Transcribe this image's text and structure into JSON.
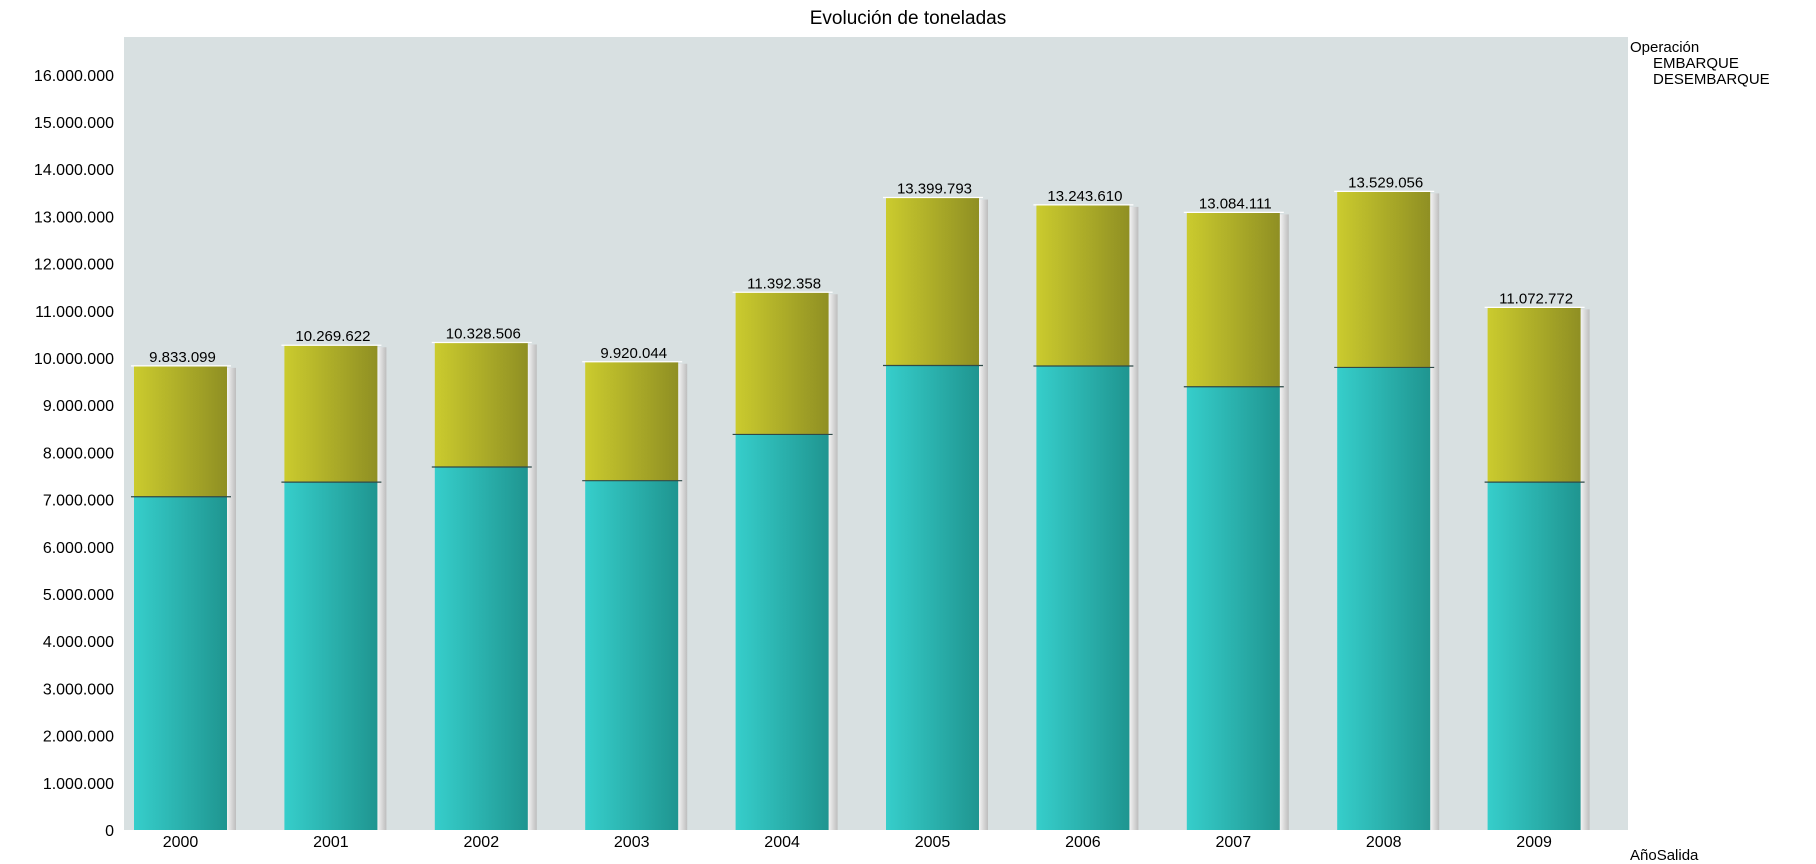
{
  "chart_data": {
    "type": "bar",
    "stacked": true,
    "title": "Evolución de toneladas",
    "xlabel": "AñoSalida",
    "ylabel": "",
    "ylim": [
      0,
      16800000
    ],
    "yticks": [
      0,
      1000000,
      2000000,
      3000000,
      4000000,
      5000000,
      6000000,
      7000000,
      8000000,
      9000000,
      10000000,
      11000000,
      12000000,
      13000000,
      14000000,
      15000000,
      16000000
    ],
    "ytick_labels": [
      "0",
      "1.000.000",
      "2.000.000",
      "3.000.000",
      "4.000.000",
      "5.000.000",
      "6.000.000",
      "7.000.000",
      "8.000.000",
      "9.000.000",
      "10.000.000",
      "11.000.000",
      "12.000.000",
      "13.000.000",
      "14.000.000",
      "15.000.000",
      "16.000.000"
    ],
    "categories": [
      "2000",
      "2001",
      "2002",
      "2003",
      "2004",
      "2005",
      "2006",
      "2007",
      "2008",
      "2009"
    ],
    "grid": false,
    "legend_position": "top-right",
    "legend_title": "Operación",
    "series": [
      {
        "name": "EMBARQUE",
        "color": "#2ab8b4",
        "values": [
          7060000,
          7370000,
          7690000,
          7400000,
          8380000,
          9840000,
          9830000,
          9390000,
          9800000,
          7370000
        ]
      },
      {
        "name": "DESEMBARQUE",
        "color": "#b3b326",
        "values": [
          2773099,
          2899622,
          2638506,
          2520044,
          3012358,
          3559793,
          3413610,
          3694111,
          3729056,
          3702772
        ]
      }
    ],
    "totals": [
      9833099,
      10269622,
      10328506,
      9920044,
      11392358,
      13399793,
      13243610,
      13084111,
      13529056,
      11072772
    ],
    "total_labels": [
      "9.833.099",
      "10.269.622",
      "10.328.506",
      "9.920.044",
      "11.392.358",
      "13.399.793",
      "13.243.610",
      "13.084.111",
      "13.529.056",
      "11.072.772"
    ],
    "plot_background": "#d8e0e1"
  }
}
